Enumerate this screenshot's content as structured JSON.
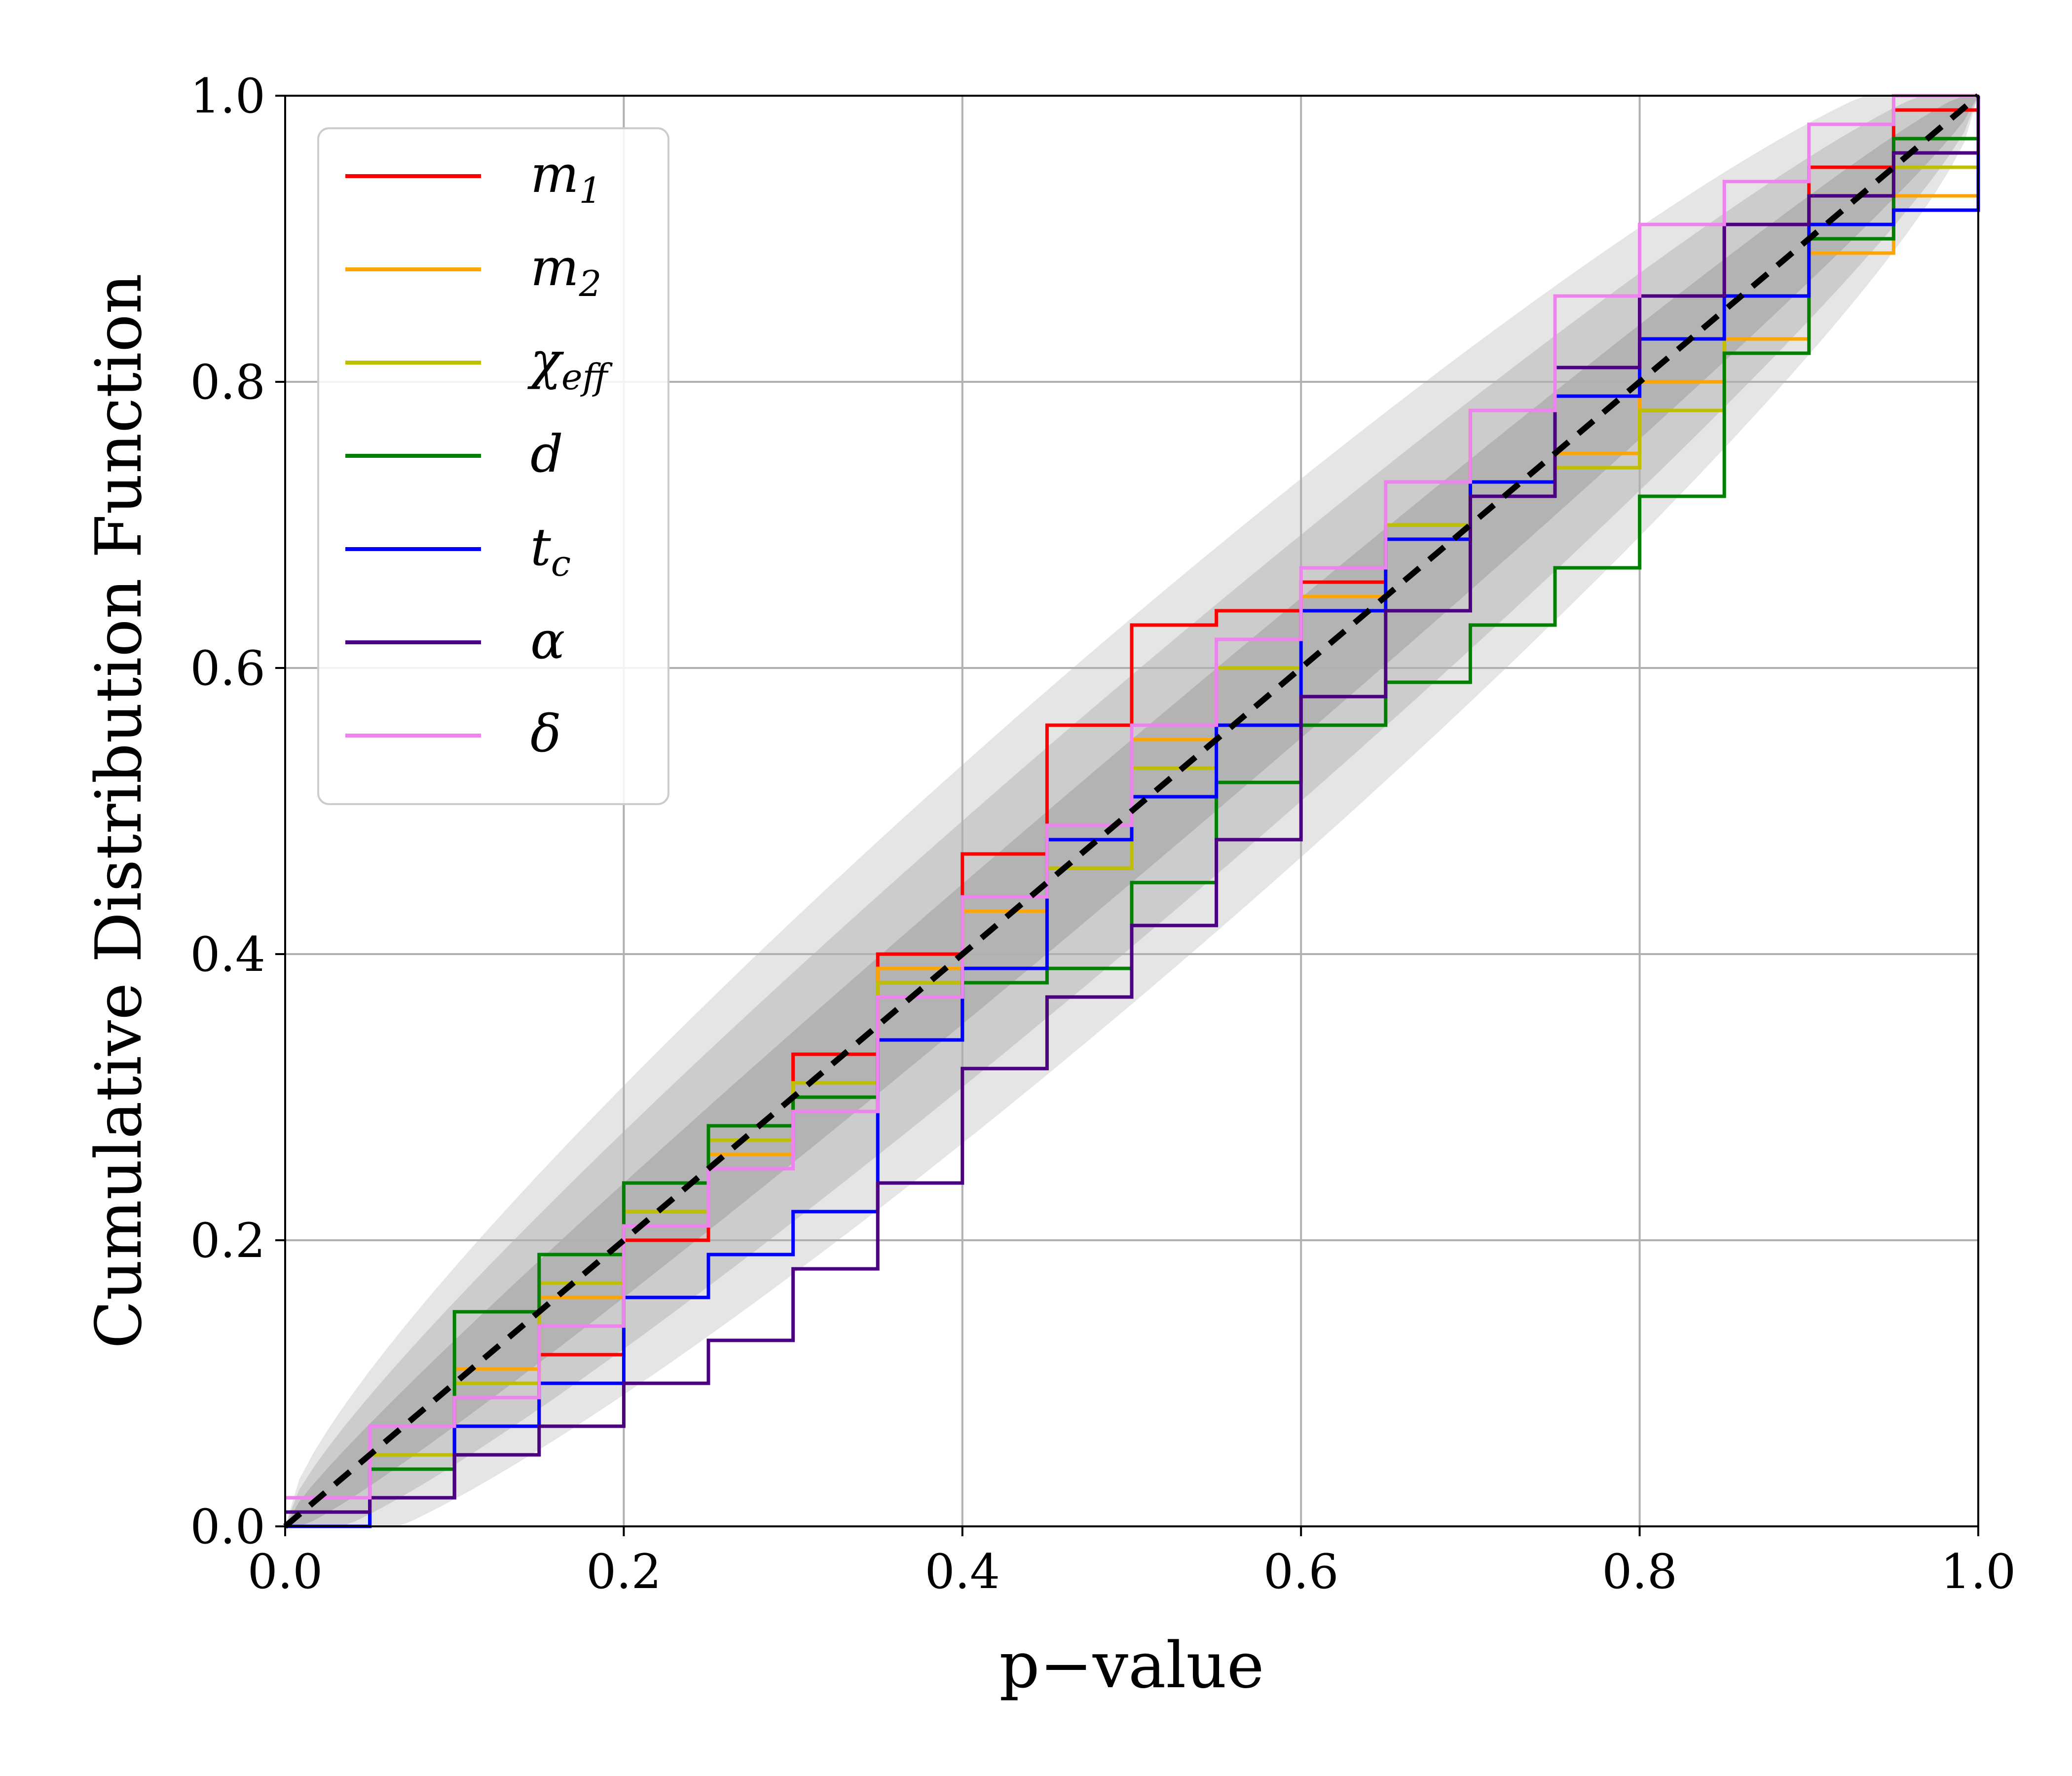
{
  "chart_data": {
    "type": "line",
    "title": "",
    "xlabel": "p−value",
    "ylabel": "Cumulative Distribution Function",
    "xlim": [
      0.0,
      1.0
    ],
    "ylim": [
      0.0,
      1.0
    ],
    "grid": true,
    "legend_position": "top-left",
    "x_ticks": [
      "0.0",
      "0.2",
      "0.4",
      "0.6",
      "0.8",
      "1.0"
    ],
    "y_ticks": [
      "0.0",
      "0.2",
      "0.4",
      "0.6",
      "0.8",
      "1.0"
    ],
    "bands": [
      {
        "name": "3-sigma",
        "color": "#e5e5e5",
        "half_width_at_center": 0.135
      },
      {
        "name": "2-sigma",
        "color": "#cccccc",
        "half_width_at_center": 0.095
      },
      {
        "name": "1-sigma",
        "color": "#b3b3b3",
        "half_width_at_center": 0.05
      }
    ],
    "reference_line": {
      "name": "diagonal",
      "color": "#000000",
      "style": "dashed",
      "points": [
        [
          0,
          0
        ],
        [
          1,
          1
        ]
      ]
    },
    "series": [
      {
        "name": "m",
        "sub": "1",
        "color": "#ff0000",
        "points": [
          [
            0,
            0
          ],
          [
            0.05,
            0.02
          ],
          [
            0.1,
            0.07
          ],
          [
            0.15,
            0.12
          ],
          [
            0.2,
            0.2
          ],
          [
            0.25,
            0.26
          ],
          [
            0.3,
            0.33
          ],
          [
            0.35,
            0.4
          ],
          [
            0.4,
            0.47
          ],
          [
            0.45,
            0.56
          ],
          [
            0.5,
            0.63
          ],
          [
            0.55,
            0.64
          ],
          [
            0.6,
            0.66
          ],
          [
            0.65,
            0.7
          ],
          [
            0.7,
            0.78
          ],
          [
            0.75,
            0.81
          ],
          [
            0.8,
            0.86
          ],
          [
            0.85,
            0.91
          ],
          [
            0.9,
            0.95
          ],
          [
            0.95,
            0.99
          ],
          [
            1,
            1
          ]
        ]
      },
      {
        "name": "m",
        "sub": "2",
        "color": "#ffa500",
        "points": [
          [
            0,
            0.02
          ],
          [
            0.05,
            0.05
          ],
          [
            0.1,
            0.11
          ],
          [
            0.15,
            0.16
          ],
          [
            0.2,
            0.21
          ],
          [
            0.25,
            0.26
          ],
          [
            0.3,
            0.31
          ],
          [
            0.35,
            0.39
          ],
          [
            0.4,
            0.43
          ],
          [
            0.45,
            0.49
          ],
          [
            0.5,
            0.55
          ],
          [
            0.55,
            0.6
          ],
          [
            0.6,
            0.65
          ],
          [
            0.65,
            0.7
          ],
          [
            0.7,
            0.72
          ],
          [
            0.75,
            0.75
          ],
          [
            0.8,
            0.8
          ],
          [
            0.85,
            0.83
          ],
          [
            0.9,
            0.89
          ],
          [
            0.95,
            0.93
          ],
          [
            1,
            1
          ]
        ]
      },
      {
        "name": "χ",
        "sub": "eff",
        "color": "#bfbf00",
        "points": [
          [
            0,
            0.01
          ],
          [
            0.05,
            0.05
          ],
          [
            0.1,
            0.1
          ],
          [
            0.15,
            0.17
          ],
          [
            0.2,
            0.22
          ],
          [
            0.25,
            0.27
          ],
          [
            0.3,
            0.31
          ],
          [
            0.35,
            0.38
          ],
          [
            0.4,
            0.44
          ],
          [
            0.45,
            0.46
          ],
          [
            0.5,
            0.53
          ],
          [
            0.55,
            0.6
          ],
          [
            0.6,
            0.64
          ],
          [
            0.65,
            0.7
          ],
          [
            0.7,
            0.72
          ],
          [
            0.75,
            0.74
          ],
          [
            0.8,
            0.78
          ],
          [
            0.85,
            0.86
          ],
          [
            0.9,
            0.9
          ],
          [
            0.95,
            0.95
          ],
          [
            1,
            1
          ]
        ]
      },
      {
        "name": "d",
        "sub": "",
        "color": "#008000",
        "points": [
          [
            0,
            0
          ],
          [
            0.05,
            0.04
          ],
          [
            0.1,
            0.15
          ],
          [
            0.15,
            0.19
          ],
          [
            0.2,
            0.24
          ],
          [
            0.25,
            0.28
          ],
          [
            0.3,
            0.3
          ],
          [
            0.35,
            0.34
          ],
          [
            0.4,
            0.38
          ],
          [
            0.45,
            0.39
          ],
          [
            0.5,
            0.45
          ],
          [
            0.55,
            0.52
          ],
          [
            0.6,
            0.56
          ],
          [
            0.65,
            0.59
          ],
          [
            0.7,
            0.63
          ],
          [
            0.75,
            0.67
          ],
          [
            0.8,
            0.72
          ],
          [
            0.85,
            0.82
          ],
          [
            0.9,
            0.9
          ],
          [
            0.95,
            0.97
          ],
          [
            1,
            1
          ]
        ]
      },
      {
        "name": "t",
        "sub": "c",
        "color": "#0000ff",
        "points": [
          [
            0,
            0
          ],
          [
            0.05,
            0.02
          ],
          [
            0.1,
            0.07
          ],
          [
            0.15,
            0.1
          ],
          [
            0.2,
            0.16
          ],
          [
            0.25,
            0.19
          ],
          [
            0.3,
            0.22
          ],
          [
            0.35,
            0.34
          ],
          [
            0.4,
            0.39
          ],
          [
            0.45,
            0.48
          ],
          [
            0.5,
            0.51
          ],
          [
            0.55,
            0.56
          ],
          [
            0.6,
            0.64
          ],
          [
            0.65,
            0.69
          ],
          [
            0.7,
            0.73
          ],
          [
            0.75,
            0.79
          ],
          [
            0.8,
            0.83
          ],
          [
            0.85,
            0.86
          ],
          [
            0.9,
            0.91
          ],
          [
            0.95,
            0.92
          ],
          [
            1,
            0.97
          ]
        ]
      },
      {
        "name": "α",
        "sub": "",
        "color": "#4b0082",
        "points": [
          [
            0,
            0.01
          ],
          [
            0.05,
            0.02
          ],
          [
            0.1,
            0.05
          ],
          [
            0.15,
            0.07
          ],
          [
            0.2,
            0.1
          ],
          [
            0.25,
            0.13
          ],
          [
            0.3,
            0.18
          ],
          [
            0.35,
            0.24
          ],
          [
            0.4,
            0.32
          ],
          [
            0.45,
            0.37
          ],
          [
            0.5,
            0.42
          ],
          [
            0.55,
            0.48
          ],
          [
            0.6,
            0.58
          ],
          [
            0.65,
            0.64
          ],
          [
            0.7,
            0.72
          ],
          [
            0.75,
            0.81
          ],
          [
            0.8,
            0.86
          ],
          [
            0.85,
            0.91
          ],
          [
            0.9,
            0.93
          ],
          [
            0.95,
            0.96
          ],
          [
            1,
            1
          ]
        ]
      },
      {
        "name": "δ",
        "sub": "",
        "color": "#ee82ee",
        "points": [
          [
            0,
            0.02
          ],
          [
            0.05,
            0.07
          ],
          [
            0.1,
            0.09
          ],
          [
            0.15,
            0.14
          ],
          [
            0.2,
            0.21
          ],
          [
            0.25,
            0.25
          ],
          [
            0.3,
            0.29
          ],
          [
            0.35,
            0.37
          ],
          [
            0.4,
            0.44
          ],
          [
            0.45,
            0.49
          ],
          [
            0.5,
            0.56
          ],
          [
            0.55,
            0.62
          ],
          [
            0.6,
            0.67
          ],
          [
            0.65,
            0.73
          ],
          [
            0.7,
            0.78
          ],
          [
            0.75,
            0.86
          ],
          [
            0.8,
            0.91
          ],
          [
            0.85,
            0.94
          ],
          [
            0.9,
            0.98
          ],
          [
            0.95,
            1.0
          ],
          [
            1,
            1
          ]
        ]
      }
    ]
  }
}
